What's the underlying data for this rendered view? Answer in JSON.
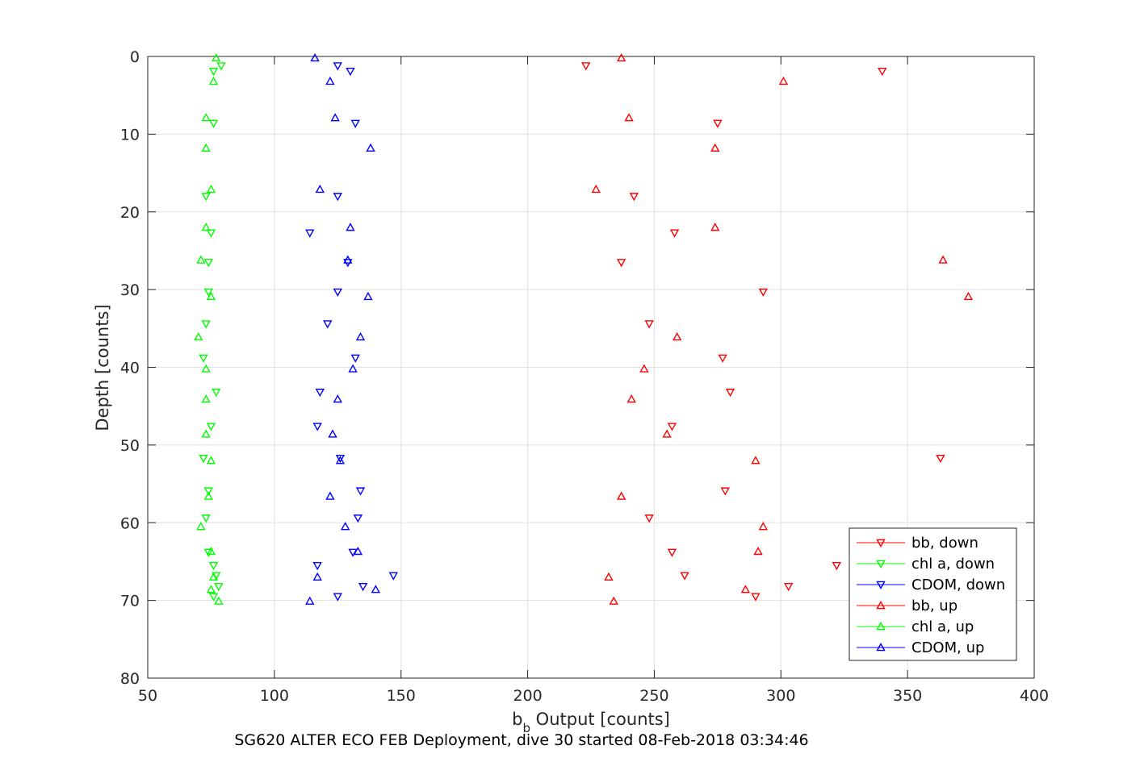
{
  "chart_data": {
    "type": "scatter",
    "xlabel_main": "b",
    "xlabel_sub": "b",
    "xlabel_rest": " Output [counts]",
    "ylabel": "Depth [counts]",
    "footer": "SG620 ALTER ECO FEB Deployment, dive 30 started 08-Feb-2018 03:34:46",
    "xlim": [
      50,
      400
    ],
    "ylim": [
      0,
      80
    ],
    "y_reversed": true,
    "grid": true,
    "x_ticks": [
      50,
      100,
      150,
      200,
      250,
      300,
      350,
      400
    ],
    "y_ticks": [
      0,
      10,
      20,
      30,
      40,
      50,
      60,
      70,
      80
    ],
    "legend_position": "bottom-right",
    "series": [
      {
        "name": "bb, down",
        "color": "#ff0000",
        "marker": "triangle-down",
        "points": [
          [
            223,
            1.2
          ],
          [
            340,
            1.9
          ],
          [
            275,
            8.6
          ],
          [
            242,
            18
          ],
          [
            258,
            22.7
          ],
          [
            237,
            26.5
          ],
          [
            293,
            30.3
          ],
          [
            248,
            34.4
          ],
          [
            277,
            38.8
          ],
          [
            280,
            43.2
          ],
          [
            257,
            47.6
          ],
          [
            363,
            51.7
          ],
          [
            278,
            55.9
          ],
          [
            248,
            59.4
          ],
          [
            257,
            63.8
          ],
          [
            262,
            66.8
          ],
          [
            322,
            65.5
          ],
          [
            303,
            68.2
          ],
          [
            290,
            69.5
          ]
        ]
      },
      {
        "name": "chl a, down",
        "color": "#00ff00",
        "marker": "triangle-down",
        "points": [
          [
            79,
            1.2
          ],
          [
            76,
            1.9
          ],
          [
            76,
            8.6
          ],
          [
            73,
            18
          ],
          [
            75,
            22.7
          ],
          [
            74,
            26.5
          ],
          [
            74,
            30.3
          ],
          [
            73,
            34.4
          ],
          [
            72,
            38.8
          ],
          [
            77,
            43.2
          ],
          [
            75,
            47.6
          ],
          [
            72,
            51.7
          ],
          [
            74,
            55.9
          ],
          [
            73,
            59.4
          ],
          [
            74,
            63.8
          ],
          [
            76,
            65.5
          ],
          [
            77,
            66.8
          ],
          [
            78,
            68.2
          ],
          [
            76,
            69.5
          ]
        ]
      },
      {
        "name": "CDOM, down",
        "color": "#0000ff",
        "marker": "triangle-down",
        "points": [
          [
            125,
            1.2
          ],
          [
            130,
            1.9
          ],
          [
            132,
            8.6
          ],
          [
            125,
            18
          ],
          [
            114,
            22.7
          ],
          [
            129,
            26.5
          ],
          [
            125,
            30.3
          ],
          [
            121,
            34.4
          ],
          [
            132,
            38.8
          ],
          [
            118,
            43.2
          ],
          [
            117,
            47.6
          ],
          [
            126,
            51.7
          ],
          [
            134,
            55.9
          ],
          [
            133,
            59.4
          ],
          [
            131,
            63.8
          ],
          [
            117,
            65.5
          ],
          [
            147,
            66.8
          ],
          [
            135,
            68.2
          ],
          [
            125,
            69.5
          ]
        ]
      },
      {
        "name": "bb, up",
        "color": "#ff0000",
        "marker": "triangle-up",
        "points": [
          [
            237,
            0.2
          ],
          [
            301,
            3.2
          ],
          [
            240,
            7.9
          ],
          [
            274,
            11.8
          ],
          [
            227,
            17.1
          ],
          [
            274,
            22
          ],
          [
            364,
            26.2
          ],
          [
            374,
            30.9
          ],
          [
            259,
            36.1
          ],
          [
            246,
            40.2
          ],
          [
            241,
            44.1
          ],
          [
            255,
            48.6
          ],
          [
            290,
            52
          ],
          [
            237,
            56.6
          ],
          [
            293,
            60.5
          ],
          [
            291,
            63.7
          ],
          [
            232,
            67
          ],
          [
            286,
            68.6
          ],
          [
            234,
            70.1
          ]
        ]
      },
      {
        "name": "chl a, up",
        "color": "#00ff00",
        "marker": "triangle-up",
        "points": [
          [
            77,
            0.2
          ],
          [
            76,
            3.2
          ],
          [
            73,
            7.9
          ],
          [
            73,
            11.8
          ],
          [
            75,
            17.1
          ],
          [
            73,
            22
          ],
          [
            71,
            26.2
          ],
          [
            75,
            30.9
          ],
          [
            70,
            36.1
          ],
          [
            73,
            40.2
          ],
          [
            73,
            44.1
          ],
          [
            73,
            48.6
          ],
          [
            75,
            52
          ],
          [
            74,
            56.6
          ],
          [
            71,
            60.5
          ],
          [
            75,
            63.7
          ],
          [
            76,
            67
          ],
          [
            75,
            68.6
          ],
          [
            78,
            70.1
          ]
        ]
      },
      {
        "name": "CDOM, up",
        "color": "#0000ff",
        "marker": "triangle-up",
        "points": [
          [
            116,
            0.2
          ],
          [
            122,
            3.2
          ],
          [
            124,
            7.9
          ],
          [
            138,
            11.8
          ],
          [
            118,
            17.1
          ],
          [
            130,
            22
          ],
          [
            129,
            26.2
          ],
          [
            137,
            30.9
          ],
          [
            134,
            36.1
          ],
          [
            131,
            40.2
          ],
          [
            125,
            44.1
          ],
          [
            123,
            48.6
          ],
          [
            126,
            52
          ],
          [
            122,
            56.6
          ],
          [
            128,
            60.5
          ],
          [
            133,
            63.7
          ],
          [
            117,
            67
          ],
          [
            140,
            68.6
          ],
          [
            114,
            70.1
          ]
        ]
      }
    ]
  }
}
